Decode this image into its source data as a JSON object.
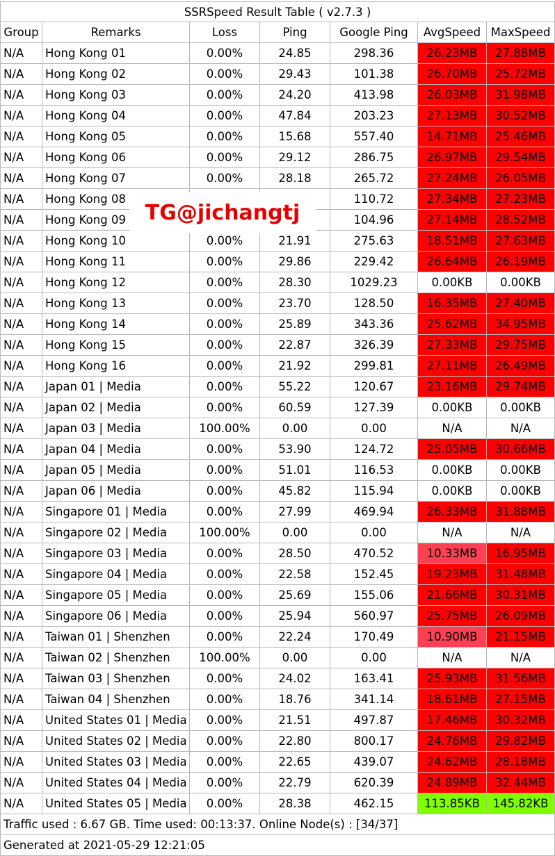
{
  "title": "SSRSpeed Result Table ( v2.7.3 )",
  "headers": [
    "Group",
    "Remarks",
    "Loss",
    "Ping",
    "Google Ping",
    "AvgSpeed",
    "MaxSpeed"
  ],
  "rows": [
    {
      "group": "N/A",
      "remarks": "Hong Kong 01",
      "loss": "0.00%",
      "ping": "24.85",
      "gping": "298.36",
      "avg": "26.23MB",
      "avgColor": "red",
      "max": "27.88MB",
      "maxColor": "red"
    },
    {
      "group": "N/A",
      "remarks": "Hong Kong 02",
      "loss": "0.00%",
      "ping": "29.43",
      "gping": "101.38",
      "avg": "26.70MB",
      "avgColor": "red",
      "max": "25.72MB",
      "maxColor": "red"
    },
    {
      "group": "N/A",
      "remarks": "Hong Kong 03",
      "loss": "0.00%",
      "ping": "24.20",
      "gping": "413.98",
      "avg": "26.03MB",
      "avgColor": "red",
      "max": "31.98MB",
      "maxColor": "red"
    },
    {
      "group": "N/A",
      "remarks": "Hong Kong 04",
      "loss": "0.00%",
      "ping": "47.84",
      "gping": "203.23",
      "avg": "27.13MB",
      "avgColor": "red",
      "max": "30.52MB",
      "maxColor": "red"
    },
    {
      "group": "N/A",
      "remarks": "Hong Kong 05",
      "loss": "0.00%",
      "ping": "15.68",
      "gping": "557.40",
      "avg": "14.71MB",
      "avgColor": "red",
      "max": "25.46MB",
      "maxColor": "red"
    },
    {
      "group": "N/A",
      "remarks": "Hong Kong 06",
      "loss": "0.00%",
      "ping": "29.12",
      "gping": "286.75",
      "avg": "26.97MB",
      "avgColor": "red",
      "max": "29.54MB",
      "maxColor": "red"
    },
    {
      "group": "N/A",
      "remarks": "Hong Kong 07",
      "loss": "0.00%",
      "ping": "28.18",
      "gping": "265.72",
      "avg": "27.24MB",
      "avgColor": "red",
      "max": "26.05MB",
      "maxColor": "red"
    },
    {
      "group": "N/A",
      "remarks": "Hong Kong 08",
      "loss": "",
      "ping": "",
      "gping": "110.72",
      "avg": "27.34MB",
      "avgColor": "red",
      "max": "27.23MB",
      "maxColor": "red"
    },
    {
      "group": "N/A",
      "remarks": "Hong Kong 09",
      "loss": "",
      "ping": "",
      "gping": "104.96",
      "avg": "27.14MB",
      "avgColor": "red",
      "max": "28.52MB",
      "maxColor": "red"
    },
    {
      "group": "N/A",
      "remarks": "Hong Kong 10",
      "loss": "0.00%",
      "ping": "21.91",
      "gping": "275.63",
      "avg": "18.51MB",
      "avgColor": "red",
      "max": "27.63MB",
      "maxColor": "red"
    },
    {
      "group": "N/A",
      "remarks": "Hong Kong 11",
      "loss": "0.00%",
      "ping": "29.86",
      "gping": "229.42",
      "avg": "26.64MB",
      "avgColor": "red",
      "max": "26.19MB",
      "maxColor": "red"
    },
    {
      "group": "N/A",
      "remarks": "Hong Kong 12",
      "loss": "0.00%",
      "ping": "28.30",
      "gping": "1029.23",
      "avg": "0.00KB",
      "avgColor": "none",
      "max": "0.00KB",
      "maxColor": "none"
    },
    {
      "group": "N/A",
      "remarks": "Hong Kong 13",
      "loss": "0.00%",
      "ping": "23.70",
      "gping": "128.50",
      "avg": "16.35MB",
      "avgColor": "red",
      "max": "27.40MB",
      "maxColor": "red"
    },
    {
      "group": "N/A",
      "remarks": "Hong Kong 14",
      "loss": "0.00%",
      "ping": "25.89",
      "gping": "343.36",
      "avg": "25.62MB",
      "avgColor": "red",
      "max": "34.95MB",
      "maxColor": "red"
    },
    {
      "group": "N/A",
      "remarks": "Hong Kong 15",
      "loss": "0.00%",
      "ping": "22.87",
      "gping": "326.39",
      "avg": "27.33MB",
      "avgColor": "red",
      "max": "29.75MB",
      "maxColor": "red"
    },
    {
      "group": "N/A",
      "remarks": "Hong Kong 16",
      "loss": "0.00%",
      "ping": "21.92",
      "gping": "299.81",
      "avg": "27.11MB",
      "avgColor": "red",
      "max": "26.49MB",
      "maxColor": "red"
    },
    {
      "group": "N/A",
      "remarks": "Japan 01 | Media",
      "loss": "0.00%",
      "ping": "55.22",
      "gping": "120.67",
      "avg": "23.16MB",
      "avgColor": "red",
      "max": "29.74MB",
      "maxColor": "red"
    },
    {
      "group": "N/A",
      "remarks": "Japan 02 | Media",
      "loss": "0.00%",
      "ping": "60.59",
      "gping": "127.39",
      "avg": "0.00KB",
      "avgColor": "none",
      "max": "0.00KB",
      "maxColor": "none"
    },
    {
      "group": "N/A",
      "remarks": "Japan 03 | Media",
      "loss": "100.00%",
      "ping": "0.00",
      "gping": "0.00",
      "avg": "N/A",
      "avgColor": "none",
      "max": "N/A",
      "maxColor": "none"
    },
    {
      "group": "N/A",
      "remarks": "Japan 04 | Media",
      "loss": "0.00%",
      "ping": "53.90",
      "gping": "124.72",
      "avg": "25.05MB",
      "avgColor": "red",
      "max": "30.66MB",
      "maxColor": "red"
    },
    {
      "group": "N/A",
      "remarks": "Japan 05 | Media",
      "loss": "0.00%",
      "ping": "51.01",
      "gping": "116.53",
      "avg": "0.00KB",
      "avgColor": "none",
      "max": "0.00KB",
      "maxColor": "none"
    },
    {
      "group": "N/A",
      "remarks": "Japan 06 | Media",
      "loss": "0.00%",
      "ping": "45.82",
      "gping": "115.94",
      "avg": "0.00KB",
      "avgColor": "none",
      "max": "0.00KB",
      "maxColor": "none"
    },
    {
      "group": "N/A",
      "remarks": "Singapore 01 | Media",
      "loss": "0.00%",
      "ping": "27.99",
      "gping": "469.94",
      "avg": "26.33MB",
      "avgColor": "red",
      "max": "31.88MB",
      "maxColor": "red"
    },
    {
      "group": "N/A",
      "remarks": "Singapore 02 | Media",
      "loss": "100.00%",
      "ping": "0.00",
      "gping": "0.00",
      "avg": "N/A",
      "avgColor": "none",
      "max": "N/A",
      "maxColor": "none"
    },
    {
      "group": "N/A",
      "remarks": "Singapore 03 | Media",
      "loss": "0.00%",
      "ping": "28.50",
      "gping": "470.52",
      "avg": "10.33MB",
      "avgColor": "pink",
      "max": "16.95MB",
      "maxColor": "red"
    },
    {
      "group": "N/A",
      "remarks": "Singapore 04 | Media",
      "loss": "0.00%",
      "ping": "22.58",
      "gping": "152.45",
      "avg": "19.23MB",
      "avgColor": "red",
      "max": "31.48MB",
      "maxColor": "red"
    },
    {
      "group": "N/A",
      "remarks": "Singapore 05 | Media",
      "loss": "0.00%",
      "ping": "25.69",
      "gping": "155.06",
      "avg": "21.66MB",
      "avgColor": "red",
      "max": "30.31MB",
      "maxColor": "red"
    },
    {
      "group": "N/A",
      "remarks": "Singapore 06 | Media",
      "loss": "0.00%",
      "ping": "25.94",
      "gping": "560.97",
      "avg": "25.75MB",
      "avgColor": "red",
      "max": "26.09MB",
      "maxColor": "red"
    },
    {
      "group": "N/A",
      "remarks": "Taiwan 01 | Shenzhen",
      "loss": "0.00%",
      "ping": "22.24",
      "gping": "170.49",
      "avg": "10.90MB",
      "avgColor": "pink",
      "max": "21.15MB",
      "maxColor": "red"
    },
    {
      "group": "N/A",
      "remarks": "Taiwan 02 | Shenzhen",
      "loss": "100.00%",
      "ping": "0.00",
      "gping": "0.00",
      "avg": "N/A",
      "avgColor": "none",
      "max": "N/A",
      "maxColor": "none"
    },
    {
      "group": "N/A",
      "remarks": "Taiwan 03 | Shenzhen",
      "loss": "0.00%",
      "ping": "24.02",
      "gping": "163.41",
      "avg": "25.93MB",
      "avgColor": "red",
      "max": "31.56MB",
      "maxColor": "red"
    },
    {
      "group": "N/A",
      "remarks": "Taiwan 04 | Shenzhen",
      "loss": "0.00%",
      "ping": "18.76",
      "gping": "341.14",
      "avg": "18.61MB",
      "avgColor": "red",
      "max": "27.15MB",
      "maxColor": "red"
    },
    {
      "group": "N/A",
      "remarks": "United States 01 | Media",
      "loss": "0.00%",
      "ping": "21.51",
      "gping": "497.87",
      "avg": "17.46MB",
      "avgColor": "red",
      "max": "30.32MB",
      "maxColor": "red"
    },
    {
      "group": "N/A",
      "remarks": "United States 02 | Media",
      "loss": "0.00%",
      "ping": "22.80",
      "gping": "800.17",
      "avg": "24.76MB",
      "avgColor": "red",
      "max": "29.82MB",
      "maxColor": "red"
    },
    {
      "group": "N/A",
      "remarks": "United States 03 | Media",
      "loss": "0.00%",
      "ping": "22.65",
      "gping": "439.07",
      "avg": "24.62MB",
      "avgColor": "red",
      "max": "28.18MB",
      "maxColor": "red"
    },
    {
      "group": "N/A",
      "remarks": "United States 04 | Media",
      "loss": "0.00%",
      "ping": "22.79",
      "gping": "620.39",
      "avg": "24.89MB",
      "avgColor": "red",
      "max": "32.44MB",
      "maxColor": "red"
    },
    {
      "group": "N/A",
      "remarks": "United States 05 | Media",
      "loss": "0.00%",
      "ping": "28.38",
      "gping": "462.15",
      "avg": "113.85KB",
      "avgColor": "green",
      "max": "145.82KB",
      "maxColor": "green"
    }
  ],
  "footer": {
    "traffic": "Traffic used : 6.67 GB. Time used: 00:13:37. Online Node(s) : [34/37]",
    "generated": "Generated at 2021-05-29 12:21:05"
  },
  "watermark": "TG@jichangtj",
  "colors": {
    "red": "#ff0000",
    "pink": "#ff3f52",
    "green": "#7fff00",
    "none": "#ffffff",
    "watermark": "#e80000"
  }
}
